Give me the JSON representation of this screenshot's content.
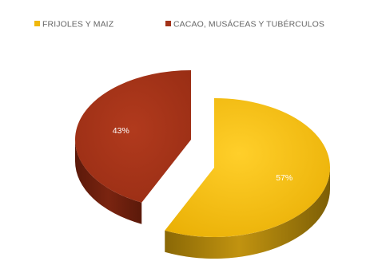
{
  "chart_data": {
    "type": "pie",
    "title": "",
    "legend_position": "top",
    "series": [
      {
        "name": "FRIJOLES Y MAIZ",
        "value": 57,
        "label": "57%",
        "color": "#f0b80c",
        "side_color": "#a67e08"
      },
      {
        "name": "CACAO, MUSÁCEAS Y TUBÉRCULOS",
        "value": 43,
        "label": "43%",
        "color": "#a23218",
        "side_color": "#6c1e0c"
      }
    ]
  }
}
